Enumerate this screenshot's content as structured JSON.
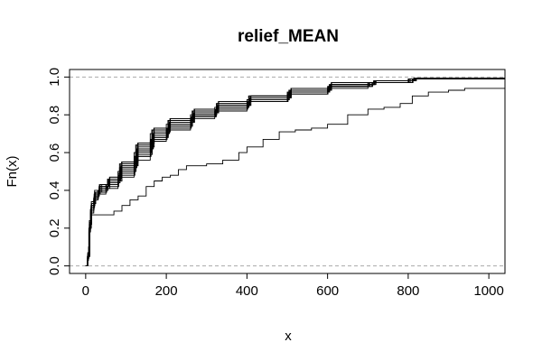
{
  "chart_data": {
    "type": "line",
    "step": true,
    "title": "relief_MEAN",
    "xlabel": "x",
    "ylabel": "Fn(x)",
    "xlim": [
      -40,
      1040
    ],
    "ylim": [
      -0.04,
      1.04
    ],
    "xticks": [
      0,
      200,
      400,
      600,
      800,
      1000
    ],
    "yticks": [
      0.0,
      0.2,
      0.4,
      0.6,
      0.8,
      1.0
    ],
    "yticklabels": [
      "0.0",
      "0.2",
      "0.4",
      "0.6",
      "0.8",
      "1.0"
    ],
    "hlines": [
      0,
      1
    ],
    "grid": false,
    "legend": "none",
    "colors": {
      "line": "#000000",
      "refline": "#aaaaaa",
      "axis": "#000000"
    },
    "series": [
      {
        "points": [
          [
            0,
            0
          ],
          [
            5,
            0.05
          ],
          [
            8,
            0.2
          ],
          [
            12,
            0.3
          ],
          [
            20,
            0.36
          ],
          [
            30,
            0.4
          ],
          [
            50,
            0.43
          ],
          [
            80,
            0.5
          ],
          [
            120,
            0.6
          ],
          [
            160,
            0.7
          ],
          [
            200,
            0.75
          ],
          [
            260,
            0.8
          ],
          [
            320,
            0.84
          ],
          [
            400,
            0.88
          ],
          [
            500,
            0.92
          ],
          [
            600,
            0.95
          ],
          [
            700,
            0.97
          ],
          [
            800,
            0.99
          ],
          [
            1040,
            1.0
          ]
        ]
      },
      {
        "points": [
          [
            0,
            0
          ],
          [
            5,
            0.06
          ],
          [
            9,
            0.22
          ],
          [
            14,
            0.32
          ],
          [
            22,
            0.38
          ],
          [
            35,
            0.41
          ],
          [
            60,
            0.45
          ],
          [
            90,
            0.53
          ],
          [
            130,
            0.63
          ],
          [
            170,
            0.71
          ],
          [
            210,
            0.76
          ],
          [
            270,
            0.81
          ],
          [
            330,
            0.85
          ],
          [
            410,
            0.89
          ],
          [
            510,
            0.93
          ],
          [
            610,
            0.96
          ],
          [
            720,
            0.98
          ],
          [
            820,
            0.99
          ],
          [
            1040,
            1.0
          ]
        ]
      },
      {
        "points": [
          [
            0,
            0
          ],
          [
            4,
            0.04
          ],
          [
            8,
            0.18
          ],
          [
            12,
            0.28
          ],
          [
            20,
            0.35
          ],
          [
            30,
            0.38
          ],
          [
            50,
            0.41
          ],
          [
            80,
            0.47
          ],
          [
            120,
            0.56
          ],
          [
            160,
            0.66
          ],
          [
            200,
            0.72
          ],
          [
            260,
            0.78
          ],
          [
            320,
            0.82
          ],
          [
            400,
            0.87
          ],
          [
            500,
            0.91
          ],
          [
            600,
            0.94
          ],
          [
            700,
            0.97
          ],
          [
            800,
            0.99
          ],
          [
            1040,
            1.0
          ]
        ]
      },
      {
        "points": [
          [
            0,
            0
          ],
          [
            5,
            0.05
          ],
          [
            10,
            0.23
          ],
          [
            15,
            0.33
          ],
          [
            25,
            0.39
          ],
          [
            40,
            0.43
          ],
          [
            60,
            0.47
          ],
          [
            90,
            0.55
          ],
          [
            130,
            0.65
          ],
          [
            170,
            0.73
          ],
          [
            210,
            0.78
          ],
          [
            270,
            0.83
          ],
          [
            330,
            0.87
          ],
          [
            410,
            0.9
          ],
          [
            510,
            0.94
          ],
          [
            610,
            0.97
          ],
          [
            720,
            0.98
          ],
          [
            820,
            0.995
          ],
          [
            1040,
            1.0
          ]
        ]
      },
      {
        "points": [
          [
            0,
            0
          ],
          [
            5,
            0.05
          ],
          [
            9,
            0.2
          ],
          [
            13,
            0.3
          ],
          [
            21,
            0.36
          ],
          [
            32,
            0.4
          ],
          [
            55,
            0.44
          ],
          [
            85,
            0.51
          ],
          [
            125,
            0.61
          ],
          [
            165,
            0.69
          ],
          [
            205,
            0.75
          ],
          [
            265,
            0.8
          ],
          [
            325,
            0.84
          ],
          [
            405,
            0.88
          ],
          [
            505,
            0.92
          ],
          [
            605,
            0.95
          ],
          [
            710,
            0.97
          ],
          [
            810,
            0.99
          ],
          [
            1040,
            1.0
          ]
        ]
      },
      {
        "points": [
          [
            0,
            0
          ],
          [
            5,
            0.07
          ],
          [
            9,
            0.24
          ],
          [
            14,
            0.34
          ],
          [
            22,
            0.4
          ],
          [
            34,
            0.43
          ],
          [
            56,
            0.46
          ],
          [
            86,
            0.54
          ],
          [
            126,
            0.64
          ],
          [
            166,
            0.72
          ],
          [
            206,
            0.77
          ],
          [
            266,
            0.82
          ],
          [
            326,
            0.86
          ],
          [
            406,
            0.9
          ],
          [
            506,
            0.93
          ],
          [
            606,
            0.96
          ],
          [
            716,
            0.98
          ],
          [
            816,
            0.99
          ],
          [
            1040,
            1.0
          ]
        ]
      },
      {
        "points": [
          [
            0,
            0
          ],
          [
            4,
            0.05
          ],
          [
            8,
            0.19
          ],
          [
            12,
            0.29
          ],
          [
            20,
            0.35
          ],
          [
            31,
            0.39
          ],
          [
            52,
            0.42
          ],
          [
            82,
            0.48
          ],
          [
            122,
            0.58
          ],
          [
            162,
            0.67
          ],
          [
            202,
            0.73
          ],
          [
            262,
            0.79
          ],
          [
            322,
            0.83
          ],
          [
            402,
            0.87
          ],
          [
            502,
            0.92
          ],
          [
            602,
            0.95
          ],
          [
            702,
            0.97
          ],
          [
            802,
            0.99
          ],
          [
            1040,
            1.0
          ]
        ]
      },
      {
        "points": [
          [
            0,
            0
          ],
          [
            5,
            0.06
          ],
          [
            10,
            0.22
          ],
          [
            15,
            0.32
          ],
          [
            23,
            0.38
          ],
          [
            36,
            0.42
          ],
          [
            58,
            0.46
          ],
          [
            88,
            0.53
          ],
          [
            128,
            0.62
          ],
          [
            168,
            0.7
          ],
          [
            208,
            0.76
          ],
          [
            268,
            0.81
          ],
          [
            328,
            0.85
          ],
          [
            408,
            0.89
          ],
          [
            508,
            0.93
          ],
          [
            608,
            0.96
          ],
          [
            718,
            0.98
          ],
          [
            818,
            0.99
          ],
          [
            1040,
            1.0
          ]
        ]
      },
      {
        "points": [
          [
            0,
            0
          ],
          [
            5,
            0.05
          ],
          [
            9,
            0.21
          ],
          [
            13,
            0.31
          ],
          [
            21,
            0.37
          ],
          [
            33,
            0.41
          ],
          [
            54,
            0.45
          ],
          [
            84,
            0.52
          ],
          [
            124,
            0.6
          ],
          [
            164,
            0.68
          ],
          [
            204,
            0.74
          ],
          [
            264,
            0.79
          ],
          [
            324,
            0.84
          ],
          [
            404,
            0.88
          ],
          [
            504,
            0.92
          ],
          [
            604,
            0.95
          ],
          [
            712,
            0.97
          ],
          [
            812,
            0.99
          ],
          [
            1040,
            1.0
          ]
        ]
      },
      {
        "points": [
          [
            0,
            0
          ],
          [
            5,
            0.06
          ],
          [
            9,
            0.23
          ],
          [
            14,
            0.33
          ],
          [
            22,
            0.39
          ],
          [
            35,
            0.42
          ],
          [
            57,
            0.45
          ],
          [
            87,
            0.52
          ],
          [
            127,
            0.62
          ],
          [
            167,
            0.7
          ],
          [
            207,
            0.76
          ],
          [
            267,
            0.81
          ],
          [
            327,
            0.85
          ],
          [
            407,
            0.89
          ],
          [
            507,
            0.93
          ],
          [
            607,
            0.96
          ],
          [
            717,
            0.98
          ],
          [
            817,
            0.99
          ],
          [
            1040,
            1.0
          ]
        ]
      },
      {
        "points": [
          [
            0,
            0
          ],
          [
            5,
            0.05
          ],
          [
            10,
            0.21
          ],
          [
            14,
            0.31
          ],
          [
            22,
            0.37
          ],
          [
            34,
            0.4
          ],
          [
            55,
            0.44
          ],
          [
            85,
            0.5
          ],
          [
            125,
            0.59
          ],
          [
            165,
            0.68
          ],
          [
            205,
            0.74
          ],
          [
            265,
            0.8
          ],
          [
            325,
            0.84
          ],
          [
            405,
            0.88
          ],
          [
            505,
            0.92
          ],
          [
            605,
            0.95
          ],
          [
            705,
            0.97
          ],
          [
            805,
            0.99
          ],
          [
            1040,
            1.0
          ]
        ]
      },
      {
        "points": [
          [
            0,
            0
          ],
          [
            5,
            0.06
          ],
          [
            9,
            0.22
          ],
          [
            13,
            0.32
          ],
          [
            21,
            0.38
          ],
          [
            33,
            0.42
          ],
          [
            54,
            0.46
          ],
          [
            84,
            0.54
          ],
          [
            124,
            0.64
          ],
          [
            164,
            0.72
          ],
          [
            204,
            0.77
          ],
          [
            264,
            0.82
          ],
          [
            324,
            0.86
          ],
          [
            404,
            0.9
          ],
          [
            504,
            0.93
          ],
          [
            604,
            0.96
          ],
          [
            714,
            0.98
          ],
          [
            814,
            0.995
          ],
          [
            1040,
            1.0
          ]
        ]
      },
      {
        "points": [
          [
            0,
            0
          ],
          [
            5,
            0.05
          ],
          [
            8,
            0.2
          ],
          [
            12,
            0.3
          ],
          [
            20,
            0.36
          ],
          [
            31,
            0.4
          ],
          [
            51,
            0.43
          ],
          [
            81,
            0.49
          ],
          [
            121,
            0.58
          ],
          [
            161,
            0.67
          ],
          [
            201,
            0.73
          ],
          [
            261,
            0.79
          ],
          [
            321,
            0.83
          ],
          [
            401,
            0.87
          ],
          [
            501,
            0.91
          ],
          [
            601,
            0.95
          ],
          [
            701,
            0.97
          ],
          [
            801,
            0.99
          ],
          [
            1040,
            1.0
          ]
        ]
      },
      {
        "points": [
          [
            0,
            0
          ],
          [
            5,
            0.06
          ],
          [
            10,
            0.23
          ],
          [
            15,
            0.33
          ],
          [
            23,
            0.39
          ],
          [
            36,
            0.43
          ],
          [
            59,
            0.47
          ],
          [
            89,
            0.55
          ],
          [
            129,
            0.65
          ],
          [
            169,
            0.73
          ],
          [
            209,
            0.78
          ],
          [
            269,
            0.83
          ],
          [
            329,
            0.87
          ],
          [
            409,
            0.9
          ],
          [
            509,
            0.94
          ],
          [
            609,
            0.97
          ],
          [
            719,
            0.98
          ],
          [
            819,
            0.99
          ],
          [
            1040,
            1.0
          ]
        ]
      },
      {
        "points": [
          [
            0,
            0
          ],
          [
            5,
            0.03
          ],
          [
            7,
            0.1
          ],
          [
            10,
            0.2
          ],
          [
            14,
            0.27
          ],
          [
            20,
            0.27
          ],
          [
            40,
            0.27
          ],
          [
            60,
            0.27
          ],
          [
            70,
            0.29
          ],
          [
            90,
            0.32
          ],
          [
            110,
            0.35
          ],
          [
            130,
            0.37
          ],
          [
            150,
            0.42
          ],
          [
            170,
            0.45
          ],
          [
            190,
            0.47
          ],
          [
            210,
            0.48
          ],
          [
            230,
            0.51
          ],
          [
            250,
            0.53
          ],
          [
            300,
            0.54
          ],
          [
            340,
            0.56
          ],
          [
            380,
            0.6
          ],
          [
            400,
            0.63
          ],
          [
            440,
            0.67
          ],
          [
            480,
            0.71
          ],
          [
            520,
            0.72
          ],
          [
            560,
            0.73
          ],
          [
            600,
            0.75
          ],
          [
            650,
            0.8
          ],
          [
            700,
            0.83
          ],
          [
            740,
            0.84
          ],
          [
            780,
            0.86
          ],
          [
            810,
            0.9
          ],
          [
            850,
            0.92
          ],
          [
            900,
            0.93
          ],
          [
            940,
            0.94
          ],
          [
            1040,
            0.94
          ]
        ]
      }
    ]
  }
}
